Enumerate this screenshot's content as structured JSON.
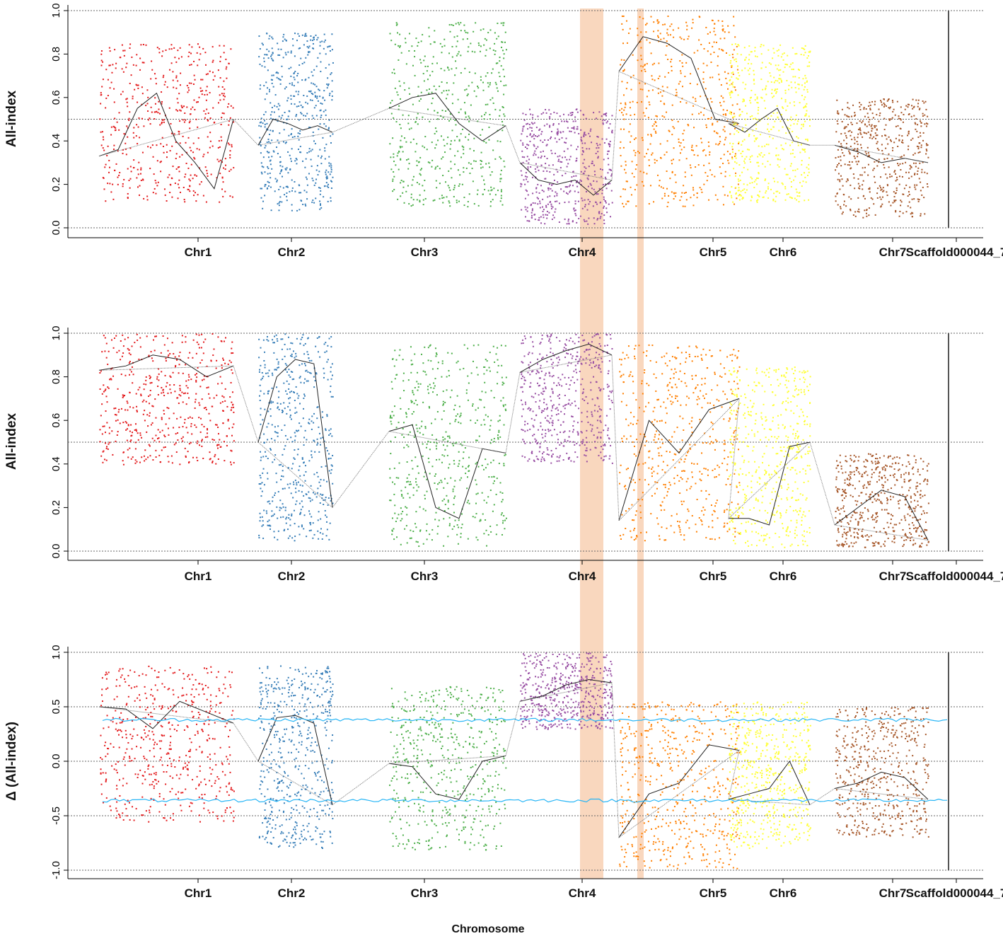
{
  "chart_data": [
    {
      "type": "scatter",
      "panel": "top",
      "ylabel": "All-index",
      "xlabel": "",
      "ylim": [
        0,
        1
      ],
      "yticks": [
        "0.0",
        "0.2",
        "0.4",
        "0.6",
        "0.8",
        "1.0"
      ],
      "reference_lines": [
        0,
        0.5,
        1
      ],
      "chromosomes": [
        "Chr1",
        "Chr2",
        "Chr3",
        "Chr4",
        "Chr5",
        "Chr6",
        "Chr7",
        "Scaffold000044_7"
      ],
      "series": [
        {
          "name": "Chr1",
          "color": "#e31a1c",
          "band_low": 0.12,
          "band_high": 0.85,
          "trend": [
            0.33,
            0.36,
            0.55,
            0.62,
            0.4,
            0.3,
            0.18,
            0.5
          ]
        },
        {
          "name": "Chr2",
          "color": "#377eb8",
          "band_low": 0.08,
          "band_high": 0.9,
          "trend": [
            0.38,
            0.5,
            0.48,
            0.45,
            0.47,
            0.44
          ]
        },
        {
          "name": "Chr3",
          "color": "#4daf4a",
          "band_low": 0.1,
          "band_high": 0.95,
          "trend": [
            0.55,
            0.6,
            0.62,
            0.48,
            0.4,
            0.47
          ]
        },
        {
          "name": "Chr4",
          "color": "#984ea3",
          "band_low": 0.02,
          "band_high": 0.55,
          "trend": [
            0.3,
            0.22,
            0.2,
            0.22,
            0.15,
            0.22
          ]
        },
        {
          "name": "Chr5",
          "color": "#ff7f00",
          "band_low": 0.1,
          "band_high": 0.98,
          "trend": [
            0.72,
            0.88,
            0.85,
            0.78,
            0.5,
            0.48
          ]
        },
        {
          "name": "Chr6",
          "color": "#ffff33",
          "band_low": 0.12,
          "band_high": 0.85,
          "trend": [
            0.48,
            0.44,
            0.5,
            0.55,
            0.4,
            0.38
          ]
        },
        {
          "name": "Chr7",
          "color": "#a65628",
          "band_low": 0.05,
          "band_high": 0.6,
          "trend": [
            0.38,
            0.35,
            0.3,
            0.32,
            0.3
          ]
        }
      ]
    },
    {
      "type": "scatter",
      "panel": "middle",
      "ylabel": "All-index",
      "xlabel": "",
      "ylim": [
        0,
        1
      ],
      "yticks": [
        "0.0",
        "0.2",
        "0.4",
        "0.6",
        "0.8",
        "1.0"
      ],
      "reference_lines": [
        0,
        0.5,
        1
      ],
      "chromosomes": [
        "Chr1",
        "Chr2",
        "Chr3",
        "Chr4",
        "Chr5",
        "Chr6",
        "Chr7",
        "Scaffold000044_7"
      ],
      "series": [
        {
          "name": "Chr1",
          "color": "#e31a1c",
          "band_low": 0.4,
          "band_high": 1.0,
          "trend": [
            0.83,
            0.85,
            0.9,
            0.88,
            0.8,
            0.85
          ]
        },
        {
          "name": "Chr2",
          "color": "#377eb8",
          "band_low": 0.05,
          "band_high": 1.0,
          "trend": [
            0.5,
            0.8,
            0.88,
            0.86,
            0.2
          ]
        },
        {
          "name": "Chr3",
          "color": "#4daf4a",
          "band_low": 0.02,
          "band_high": 0.95,
          "trend": [
            0.55,
            0.58,
            0.2,
            0.15,
            0.47,
            0.45
          ]
        },
        {
          "name": "Chr4",
          "color": "#984ea3",
          "band_low": 0.4,
          "band_high": 1.0,
          "trend": [
            0.82,
            0.88,
            0.92,
            0.95,
            0.9
          ]
        },
        {
          "name": "Chr5",
          "color": "#ff7f00",
          "band_low": 0.05,
          "band_high": 0.95,
          "trend": [
            0.14,
            0.6,
            0.45,
            0.65,
            0.7
          ]
        },
        {
          "name": "Chr6",
          "color": "#ffff33",
          "band_low": 0.02,
          "band_high": 0.85,
          "trend": [
            0.15,
            0.15,
            0.12,
            0.48,
            0.5
          ]
        },
        {
          "name": "Chr7",
          "color": "#a65628",
          "band_low": 0.02,
          "band_high": 0.45,
          "trend": [
            0.12,
            0.2,
            0.28,
            0.25,
            0.05
          ]
        }
      ]
    },
    {
      "type": "scatter",
      "panel": "bottom",
      "ylabel": "Δ (All-index)",
      "xlabel": "Chromosome",
      "ylim": [
        -1,
        1
      ],
      "yticks": [
        "-1.0",
        "-0.5",
        "0.0",
        "0.5",
        "1.0"
      ],
      "reference_lines": [
        -1,
        -0.5,
        0,
        0.5,
        1
      ],
      "threshold_upper_color": "#29b6f6",
      "threshold_upper": 0.38,
      "threshold_lower": -0.36,
      "chromosomes": [
        "Chr1",
        "Chr2",
        "Chr3",
        "Chr4",
        "Chr5",
        "Chr6",
        "Chr7",
        "Scaffold000044_7"
      ],
      "series": [
        {
          "name": "Chr1",
          "color": "#e31a1c",
          "band_low": -0.55,
          "band_high": 0.88,
          "trend": [
            0.5,
            0.48,
            0.3,
            0.55,
            0.45,
            0.35
          ]
        },
        {
          "name": "Chr2",
          "color": "#377eb8",
          "band_low": -0.8,
          "band_high": 0.88,
          "trend": [
            0.0,
            0.4,
            0.42,
            0.35,
            -0.4
          ]
        },
        {
          "name": "Chr3",
          "color": "#4daf4a",
          "band_low": -0.82,
          "band_high": 0.7,
          "trend": [
            -0.02,
            -0.05,
            -0.3,
            -0.35,
            0.0,
            0.05
          ]
        },
        {
          "name": "Chr4",
          "color": "#984ea3",
          "band_low": 0.3,
          "band_high": 1.0,
          "trend": [
            0.55,
            0.6,
            0.7,
            0.75,
            0.72
          ]
        },
        {
          "name": "Chr5",
          "color": "#ff7f00",
          "band_low": -0.98,
          "band_high": 0.55,
          "trend": [
            -0.7,
            -0.3,
            -0.2,
            0.15,
            0.1
          ]
        },
        {
          "name": "Chr6",
          "color": "#ffff33",
          "band_low": -0.8,
          "band_high": 0.55,
          "trend": [
            -0.35,
            -0.3,
            -0.25,
            0.0,
            -0.4
          ]
        },
        {
          "name": "Chr7",
          "color": "#a65628",
          "band_low": -0.7,
          "band_high": 0.5,
          "trend": [
            -0.25,
            -0.2,
            -0.1,
            -0.15,
            -0.35
          ]
        }
      ]
    }
  ],
  "highlight_color": "#f7c9a8",
  "x_axis_title": "Chromosome"
}
